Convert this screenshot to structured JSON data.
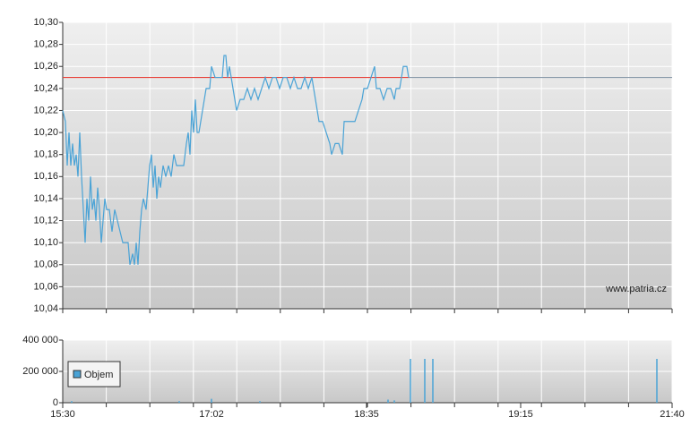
{
  "chart_data": [
    {
      "type": "line",
      "xlim": [
        0,
        340
      ],
      "xgrid": [
        0,
        24.3,
        48.6,
        72.9,
        97.1,
        121.4,
        145.7,
        170,
        194.3,
        218.6,
        242.9,
        267.1,
        291.4,
        315.7,
        340
      ],
      "ylim": [
        10.04,
        10.3
      ],
      "yticks": [
        {
          "value": 10.04,
          "label": "10,04"
        },
        {
          "value": 10.06,
          "label": "10,06"
        },
        {
          "value": 10.08,
          "label": "10,08"
        },
        {
          "value": 10.1,
          "label": "10,10"
        },
        {
          "value": 10.12,
          "label": "10,12"
        },
        {
          "value": 10.14,
          "label": "10,14"
        },
        {
          "value": 10.16,
          "label": "10,16"
        },
        {
          "value": 10.18,
          "label": "10,18"
        },
        {
          "value": 10.2,
          "label": "10,20"
        },
        {
          "value": 10.22,
          "label": "10,22"
        },
        {
          "value": 10.24,
          "label": "10,24"
        },
        {
          "value": 10.26,
          "label": "10,26"
        },
        {
          "value": 10.28,
          "label": "10,28"
        },
        {
          "value": 10.3,
          "label": "10,30"
        }
      ],
      "grid": true,
      "watermark": "www.patria.cz",
      "reference": {
        "value": 10.25,
        "color": "#e8433b",
        "after_color": "#8a9aaa"
      },
      "series": [
        {
          "color": "#4aa3d6",
          "x": [
            0,
            1.5,
            2.5,
            3.5,
            4.5,
            5.5,
            6.5,
            7.5,
            8.5,
            9.5,
            10.5,
            11.5,
            12.5,
            13.5,
            14.5,
            15.5,
            16.5,
            17.5,
            18.5,
            19.5,
            20.5,
            21.5,
            22.5,
            23.5,
            24.5,
            26,
            27.5,
            29,
            30.5,
            32,
            33.5,
            35,
            36.5,
            37.5,
            39,
            40,
            41,
            42,
            43,
            44,
            45,
            46.5,
            47.5,
            48.5,
            49.5,
            50.5,
            51.5,
            52.5,
            53.5,
            54.5,
            56,
            57.5,
            59,
            60.5,
            62,
            63.5,
            65,
            67.5,
            69,
            70,
            71,
            72,
            73,
            74,
            75,
            76,
            78,
            80,
            82,
            83,
            85,
            87,
            89,
            90,
            91,
            92,
            93,
            95,
            97,
            99,
            101,
            103,
            105,
            107,
            109,
            111,
            113,
            115,
            117,
            119,
            121,
            123,
            125,
            127,
            129,
            131,
            133,
            135,
            137,
            139,
            141,
            143,
            145,
            147,
            149,
            150,
            152,
            154,
            156,
            157,
            159,
            161,
            163,
            165,
            167,
            168,
            170,
            172,
            174,
            175,
            177,
            179,
            181,
            183,
            185,
            186,
            188,
            189,
            190,
            192,
            193
          ],
          "values": [
            10.22,
            10.21,
            10.17,
            10.2,
            10.17,
            10.19,
            10.17,
            10.18,
            10.16,
            10.2,
            10.16,
            10.13,
            10.1,
            10.14,
            10.12,
            10.16,
            10.13,
            10.14,
            10.12,
            10.15,
            10.13,
            10.1,
            10.12,
            10.14,
            10.13,
            10.13,
            10.11,
            10.13,
            10.12,
            10.11,
            10.1,
            10.1,
            10.1,
            10.08,
            10.09,
            10.08,
            10.1,
            10.08,
            10.11,
            10.13,
            10.14,
            10.13,
            10.15,
            10.17,
            10.18,
            10.15,
            10.17,
            10.14,
            10.16,
            10.15,
            10.17,
            10.16,
            10.17,
            10.16,
            10.18,
            10.17,
            10.17,
            10.17,
            10.19,
            10.2,
            10.18,
            10.22,
            10.2,
            10.23,
            10.2,
            10.2,
            10.22,
            10.24,
            10.24,
            10.26,
            10.25,
            10.25,
            10.25,
            10.27,
            10.27,
            10.25,
            10.26,
            10.24,
            10.22,
            10.23,
            10.23,
            10.24,
            10.23,
            10.24,
            10.23,
            10.24,
            10.25,
            10.24,
            10.25,
            10.25,
            10.24,
            10.25,
            10.25,
            10.24,
            10.25,
            10.24,
            10.24,
            10.25,
            10.24,
            10.25,
            10.23,
            10.21,
            10.21,
            10.2,
            10.19,
            10.18,
            10.19,
            10.19,
            10.18,
            10.21,
            10.21,
            10.21,
            10.21,
            10.22,
            10.23,
            10.24,
            10.24,
            10.25,
            10.26,
            10.24,
            10.24,
            10.23,
            10.24,
            10.24,
            10.23,
            10.24,
            10.24,
            10.25,
            10.26,
            10.26,
            10.25
          ]
        }
      ]
    },
    {
      "type": "bar",
      "xlim": [
        0,
        340
      ],
      "xgrid": [
        0,
        24.3,
        48.6,
        72.9,
        97.1,
        121.4,
        145.7,
        170,
        194.3,
        218.6,
        242.9,
        267.1,
        291.4,
        315.7,
        340
      ],
      "xticks": [
        {
          "value": 0,
          "label": "15:30"
        },
        {
          "value": 83,
          "label": "17:02"
        },
        {
          "value": 169.5,
          "label": "18:35"
        },
        {
          "value": 255.5,
          "label": "19:15"
        },
        {
          "value": 340,
          "label": "21:40"
        }
      ],
      "ylim": [
        0,
        400000
      ],
      "yticks": [
        0,
        {
          "value": 200000,
          "label": "200 000"
        },
        {
          "value": 400000,
          "label": "400 000"
        }
      ],
      "grid": true,
      "series": [
        {
          "name": "Objem",
          "color": "#4aa3d6",
          "x": [
            5,
            65,
            83,
            110,
            181.5,
            185,
            194,
            202,
            206.5,
            331.5
          ],
          "values": [
            10000,
            10000,
            25000,
            10000,
            20000,
            15000,
            280000,
            280000,
            280000,
            280000
          ]
        }
      ]
    }
  ]
}
